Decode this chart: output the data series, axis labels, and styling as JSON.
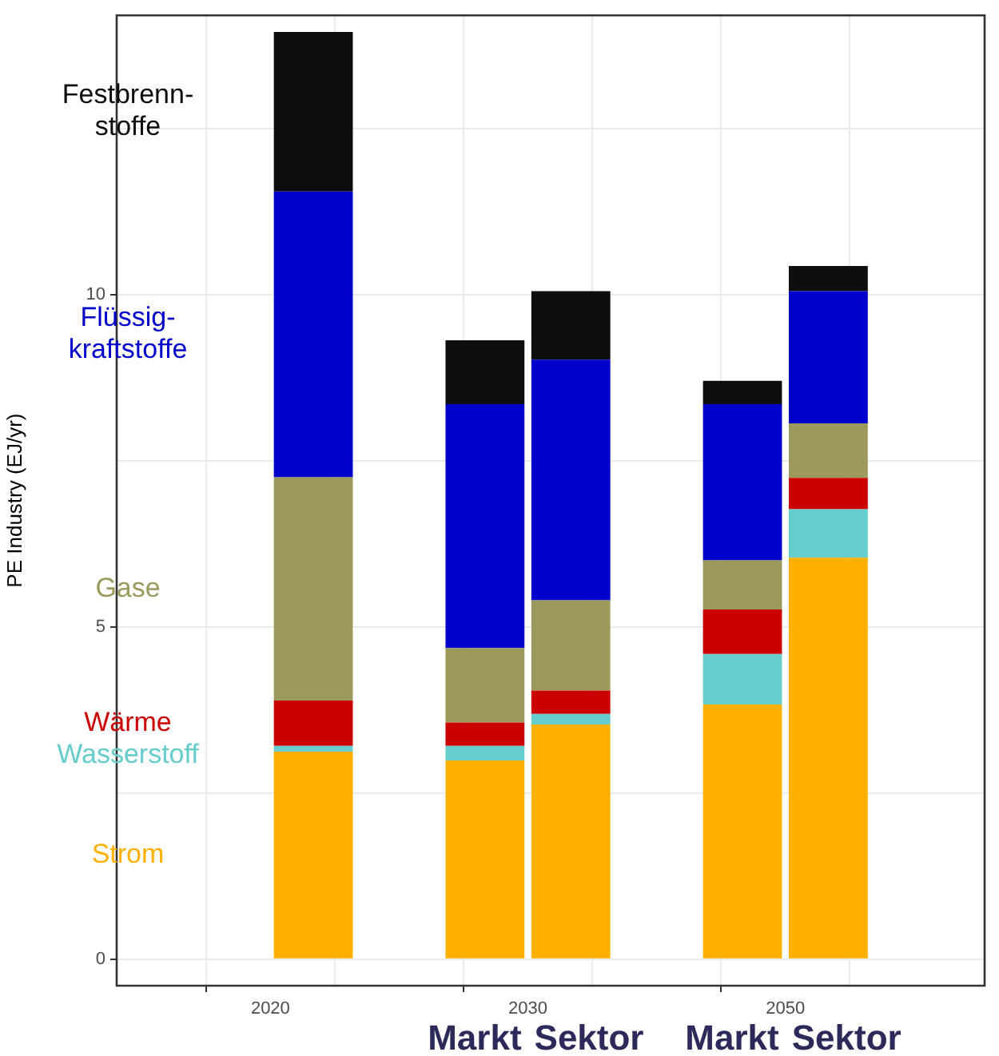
{
  "chart_data": {
    "type": "bar",
    "stacked": true,
    "ylabel": "PE Industry (EJ/yr)",
    "categories": [
      null,
      null,
      "Markt",
      "Sektor",
      "Markt",
      "Sektor"
    ],
    "ylim": [
      -0.4,
      14.2
    ],
    "yticks": [
      0,
      {
        "value": 2.5,
        "label": null
      },
      5,
      {
        "value": 7.5,
        "label": null
      },
      10,
      {
        "value": 12.5,
        "label": null
      }
    ],
    "grid": true,
    "series": [
      {
        "name": "Strom",
        "color": "#ffb000",
        "values": [
          null,
          3.12,
          2.99,
          3.53,
          3.83,
          6.04
        ]
      },
      {
        "name": "Wasserstoff",
        "color": "#66cccc",
        "values": [
          null,
          0.09,
          0.22,
          0.16,
          0.76,
          0.73
        ]
      },
      {
        "name": "Wärme",
        "color": "#cc0000",
        "values": [
          null,
          0.68,
          0.35,
          0.35,
          0.67,
          0.47
        ]
      },
      {
        "name": "Gase",
        "color": "#9b9a5c",
        "values": [
          null,
          3.36,
          1.12,
          1.36,
          0.74,
          0.82
        ]
      },
      {
        "name": "Flüssig-\nkraftstoffe",
        "color": "#0000cc",
        "values": [
          null,
          4.3,
          3.67,
          3.62,
          2.35,
          1.99
        ]
      },
      {
        "name": "Festbrenn-\nstoffe",
        "color": "#0d0d0d",
        "values": [
          null,
          2.4,
          0.96,
          1.03,
          0.35,
          0.38
        ]
      }
    ],
    "annotations": [
      "2020",
      "2030",
      "2050"
    ]
  }
}
